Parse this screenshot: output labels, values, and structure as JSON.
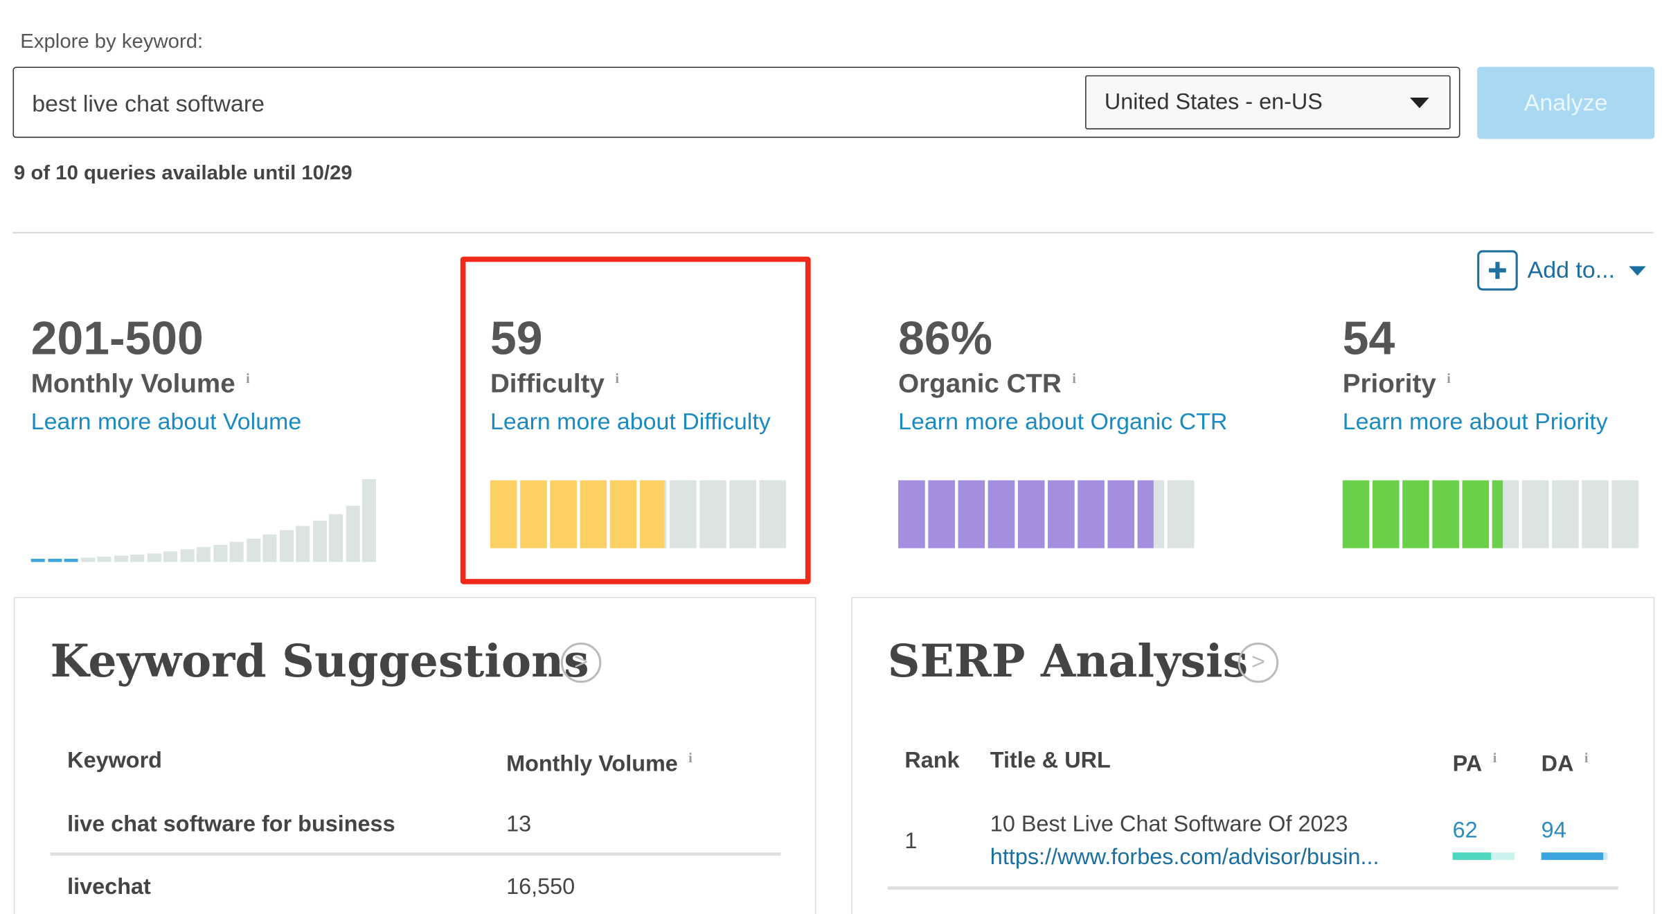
{
  "search": {
    "label": "Explore by keyword:",
    "query": "best live chat software",
    "locale": "United States - en-US",
    "button": "Analyze",
    "quota": "9 of 10 queries available until 10/29"
  },
  "add_to": "Add to...",
  "metrics": [
    {
      "value": "201-500",
      "label": "Monthly Volume",
      "link": "Learn more about Volume"
    },
    {
      "value": "59",
      "label": "Difficulty",
      "link": "Learn more about Difficulty",
      "color": "#fdd063"
    },
    {
      "value": "86%",
      "label": "Organic CTR",
      "link": "Learn more about Organic CTR",
      "color": "#a48ee0"
    },
    {
      "value": "54",
      "label": "Priority",
      "link": "Learn more about Priority",
      "color": "#6ad04a"
    }
  ],
  "keyword_suggestions": {
    "title": "Keyword Suggestions",
    "headers": [
      "Keyword",
      "Monthly Volume"
    ],
    "rows": [
      [
        "live chat software for business",
        "13"
      ],
      [
        "livechat",
        "16,550"
      ]
    ]
  },
  "serp_analysis": {
    "title": "SERP Analysis",
    "headers": [
      "Rank",
      "Title & URL",
      "PA",
      "DA"
    ],
    "rows": [
      {
        "rank": "1",
        "title": "10 Best Live Chat Software Of 2023",
        "url": "https://www.forbes.com/advisor/busin...",
        "pa": 62,
        "da": 94
      }
    ]
  }
}
